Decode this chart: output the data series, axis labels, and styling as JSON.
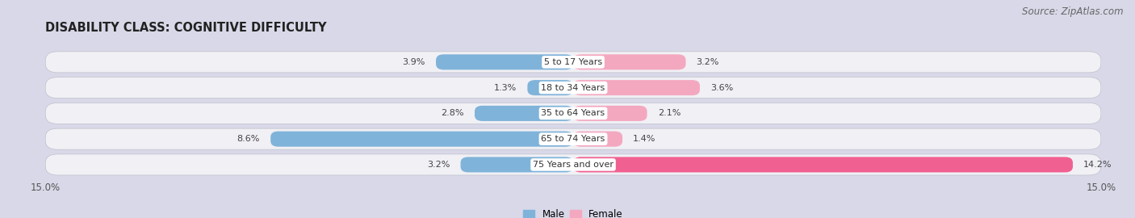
{
  "title": "DISABILITY CLASS: COGNITIVE DIFFICULTY",
  "source": "Source: ZipAtlas.com",
  "categories": [
    "5 to 17 Years",
    "18 to 34 Years",
    "35 to 64 Years",
    "65 to 74 Years",
    "75 Years and over"
  ],
  "male_values": [
    3.9,
    1.3,
    2.8,
    8.6,
    3.2
  ],
  "female_values": [
    3.2,
    3.6,
    2.1,
    1.4,
    14.2
  ],
  "male_color": "#80b3d9",
  "female_colors": [
    "#f4a8c0",
    "#f4a8c0",
    "#f4a8c0",
    "#f4a8c0",
    "#f06090"
  ],
  "row_bg_color": "#e8e8f0",
  "fig_bg_color": "#d8d8e8",
  "axis_limit": 15.0,
  "title_fontsize": 10.5,
  "source_fontsize": 8.5,
  "label_fontsize": 8,
  "category_fontsize": 8,
  "tick_fontsize": 8.5,
  "legend_male": "Male",
  "legend_female": "Female"
}
